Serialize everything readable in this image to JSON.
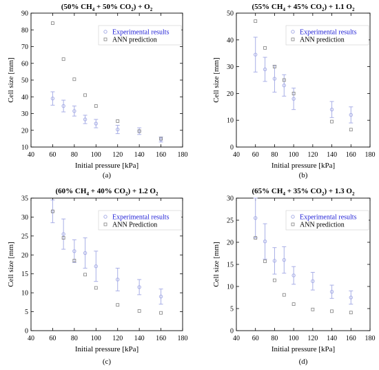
{
  "colors": {
    "experimental": "#1f1fd6",
    "experimental_marker": "#a8aee6",
    "ann": "#7f7f7f",
    "axis": "#000000"
  },
  "chart_data": [
    {
      "type": "scatter",
      "caption": "(a)",
      "title": {
        "pre": "(50% CH",
        "s1": "4",
        "mid": " + 50% CO",
        "s2": "2",
        "post": ") + O",
        "s3": "2",
        "tail": ""
      },
      "xlabel": "Initial pressure [kPa]",
      "ylabel": "Cell size [mm]",
      "xlim": [
        40,
        180
      ],
      "ylim": [
        10,
        90
      ],
      "xticks": [
        40,
        60,
        80,
        100,
        120,
        140,
        160,
        180
      ],
      "yticks": [
        10,
        20,
        30,
        40,
        50,
        60,
        70,
        80,
        90
      ],
      "legend_position": "top-right",
      "series": [
        {
          "name": "Experimental results",
          "marker": "circle",
          "x": [
            60,
            70,
            80,
            90,
            100,
            120,
            140,
            160
          ],
          "y": [
            39,
            34.5,
            31.5,
            26.5,
            24,
            20.5,
            19.5,
            14.5
          ],
          "err": [
            4,
            3.5,
            3,
            2.5,
            2.5,
            2.5,
            2,
            1.5
          ]
        },
        {
          "name": "ANN prediction",
          "marker": "square",
          "x": [
            60,
            70,
            80,
            90,
            100,
            120,
            140,
            160
          ],
          "y": [
            84,
            62.5,
            50.5,
            41,
            34.5,
            25.5,
            19.5,
            15
          ]
        }
      ]
    },
    {
      "type": "scatter",
      "caption": "(b)",
      "title": {
        "pre": "(55% CH",
        "s1": "4",
        "mid": " + 45% CO",
        "s2": "2",
        "post": ") + 1.1 O",
        "s3": "2",
        "tail": ""
      },
      "xlabel": "Initial pressure [kPa]",
      "ylabel": "Cell size [mm]",
      "xlim": [
        40,
        180
      ],
      "ylim": [
        0,
        50
      ],
      "xticks": [
        40,
        60,
        80,
        100,
        120,
        140,
        160,
        180
      ],
      "yticks": [
        0,
        10,
        20,
        30,
        40,
        50
      ],
      "legend_position": "top-right",
      "series": [
        {
          "name": "Experimental results",
          "marker": "circle",
          "x": [
            60,
            70,
            80,
            90,
            100,
            140,
            160
          ],
          "y": [
            34.5,
            29,
            25.5,
            23,
            18,
            14,
            12
          ],
          "err": [
            6.5,
            4.5,
            5,
            4,
            4,
            3,
            3
          ]
        },
        {
          "name": "ANN prediction",
          "marker": "square",
          "x": [
            60,
            70,
            80,
            90,
            100,
            140,
            160
          ],
          "y": [
            47,
            37,
            30,
            25,
            20,
            9.5,
            6.5
          ]
        }
      ]
    },
    {
      "type": "scatter",
      "caption": "(c)",
      "title": {
        "pre": "(60% CH",
        "s1": "4",
        "mid": " + 40% CO",
        "s2": "2",
        "post": ") + 1.2 O",
        "s3": "2",
        "tail": ""
      },
      "xlabel": "Initial pressure [kPa]",
      "ylabel": "Cell size [mm]",
      "xlim": [
        40,
        180
      ],
      "ylim": [
        0,
        35
      ],
      "xticks": [
        40,
        60,
        80,
        100,
        120,
        140,
        160,
        180
      ],
      "yticks": [
        0,
        5,
        10,
        15,
        20,
        25,
        30,
        35
      ],
      "legend_position": "top-right",
      "series": [
        {
          "name": "Experimental results",
          "marker": "circle",
          "x": [
            60,
            70,
            80,
            90,
            100,
            120,
            140,
            160
          ],
          "y": [
            31.5,
            25.5,
            21,
            20.5,
            17,
            13.5,
            11.5,
            9
          ],
          "err": [
            3,
            4,
            3,
            4,
            4,
            3,
            2,
            2
          ]
        },
        {
          "name": "ANN Prediction",
          "marker": "square",
          "x": [
            60,
            70,
            80,
            90,
            100,
            120,
            140,
            160
          ],
          "y": [
            31.5,
            24.5,
            18.5,
            14.8,
            11.3,
            6.8,
            5.2,
            4.7
          ]
        }
      ]
    },
    {
      "type": "scatter",
      "caption": "(d)",
      "title": {
        "pre": "(65% CH",
        "s1": "4",
        "mid": " + 35% CO",
        "s2": "2",
        "post": ") + 1.3 O",
        "s3": "2",
        "tail": ""
      },
      "xlabel": "Initial pressure [kPa]",
      "ylabel": "Cell size [mm]",
      "xlim": [
        40,
        180
      ],
      "ylim": [
        0,
        30
      ],
      "xticks": [
        40,
        60,
        80,
        100,
        120,
        140,
        160,
        180
      ],
      "yticks": [
        0,
        5,
        10,
        15,
        20,
        25,
        30
      ],
      "legend_position": "top-right",
      "series": [
        {
          "name": "Experimental results",
          "marker": "circle",
          "x": [
            60,
            70,
            80,
            90,
            100,
            120,
            140,
            160
          ],
          "y": [
            25.5,
            20.2,
            15.8,
            16,
            12.5,
            11.2,
            8.8,
            7.5
          ],
          "err": [
            4.5,
            4,
            3,
            3,
            2,
            2,
            1.5,
            1.5
          ]
        },
        {
          "name": "ANN prediction",
          "marker": "square",
          "x": [
            60,
            70,
            80,
            90,
            100,
            120,
            140,
            160
          ],
          "y": [
            21,
            15.7,
            11.4,
            8.1,
            6,
            4.8,
            4.4,
            4.1
          ]
        }
      ]
    }
  ]
}
